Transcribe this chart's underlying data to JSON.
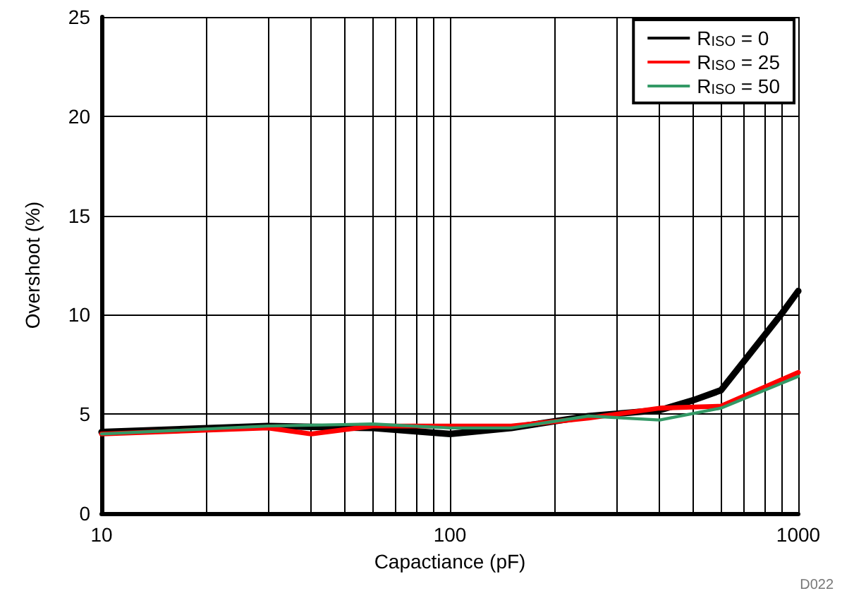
{
  "chart_data": {
    "type": "line",
    "xlabel": "Capactiance (pF)",
    "ylabel": "Overshoot (%)",
    "log": "x",
    "xlim": [
      10,
      1000
    ],
    "ylim": [
      0,
      25
    ],
    "xticks": [
      10,
      {
        "value": 20,
        "label": null
      },
      {
        "value": 30,
        "label": null
      },
      {
        "value": 40,
        "label": null
      },
      {
        "value": 50,
        "label": null
      },
      {
        "value": 60,
        "label": null
      },
      {
        "value": 70,
        "label": null
      },
      {
        "value": 80,
        "label": null
      },
      {
        "value": 90,
        "label": null
      },
      100,
      {
        "value": 200,
        "label": null
      },
      {
        "value": 300,
        "label": null
      },
      {
        "value": 400,
        "label": null
      },
      {
        "value": 500,
        "label": null
      },
      {
        "value": 600,
        "label": null
      },
      {
        "value": 700,
        "label": null
      },
      {
        "value": 800,
        "label": null
      },
      {
        "value": 900,
        "label": null
      },
      1000
    ],
    "yticks": [
      0,
      5,
      10,
      15,
      20,
      25
    ],
    "grid": true,
    "legend": "top right",
    "marker": "none",
    "line_style": "solid",
    "annotations": [
      "D022"
    ],
    "series": [
      {
        "name": "R$_{ISO}$ = 0",
        "color": "#000000",
        "x": [
          10,
          30,
          60,
          100,
          150,
          250,
          400,
          500,
          600,
          900,
          1000
        ],
        "values": [
          4.1,
          4.4,
          4.3,
          4.0,
          4.3,
          4.9,
          5.2,
          5.7,
          6.2,
          10.1,
          11.2
        ]
      },
      {
        "name": "R$_{ISO}$ = 25",
        "color": "#ff0000",
        "x": [
          10,
          30,
          40,
          60,
          100,
          150,
          250,
          400,
          600,
          1000
        ],
        "values": [
          4.0,
          4.3,
          4.0,
          4.4,
          4.4,
          4.4,
          4.8,
          5.3,
          5.4,
          7.1
        ]
      },
      {
        "name": "R$_{ISO}$ = 50",
        "color": "#339966",
        "x": [
          10,
          30,
          60,
          100,
          150,
          250,
          400,
          600,
          1000
        ],
        "values": [
          4.0,
          4.4,
          4.5,
          4.3,
          4.3,
          4.9,
          4.7,
          5.3,
          6.9
        ]
      }
    ]
  }
}
